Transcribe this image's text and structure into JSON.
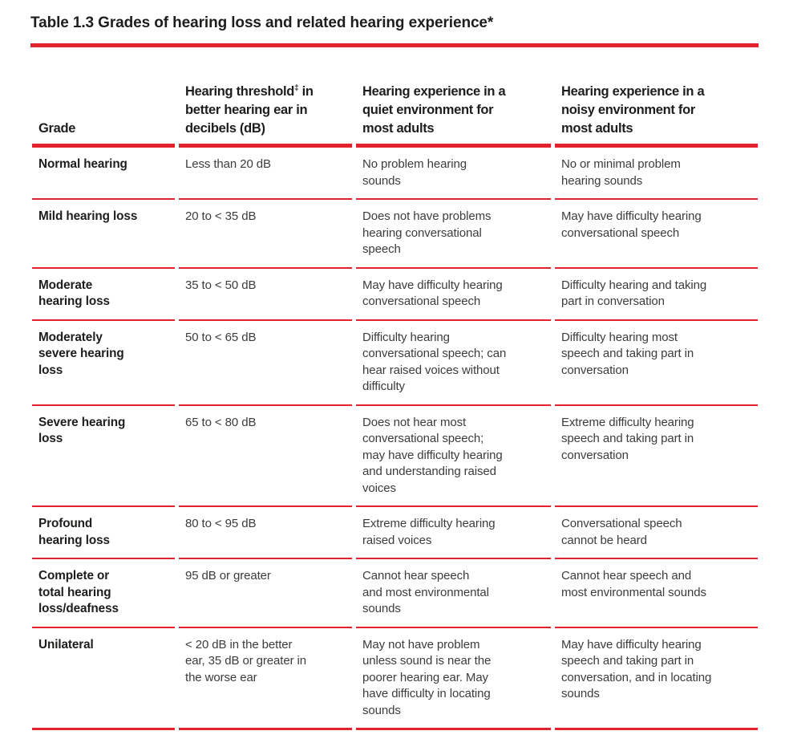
{
  "title": "Table 1.3 Grades of hearing loss and related hearing experience*",
  "colors": {
    "accent_red": "#e2232e",
    "title_text": "#1d1d1b",
    "body_text": "#3c3c3e"
  },
  "table": {
    "headers": {
      "grade": "Grade",
      "threshold_pre": "Hearing threshold",
      "threshold_sup": "‡",
      "threshold_post": " in\nbetter hearing ear in\ndecibels (dB)",
      "quiet": "Hearing experience in a\nquiet environment for\nmost adults",
      "noisy": "Hearing experience in a\nnoisy environment for\nmost adults"
    },
    "rows": [
      {
        "grade": "Normal hearing",
        "threshold": "Less than 20 dB",
        "quiet": "No problem hearing\nsounds",
        "noisy": "No or minimal problem\nhearing sounds"
      },
      {
        "grade": "Mild hearing loss",
        "threshold": "20 to < 35 dB",
        "quiet": "Does not have problems\nhearing conversational\nspeech",
        "noisy": "May have difficulty hearing\nconversational speech"
      },
      {
        "grade": "Moderate\nhearing loss",
        "threshold": "35 to < 50 dB",
        "quiet": "May have difficulty hearing\nconversational speech",
        "noisy": "Difficulty hearing and taking\npart in conversation"
      },
      {
        "grade": "Moderately\nsevere hearing\nloss",
        "threshold": "50 to < 65 dB",
        "quiet": "Difficulty hearing\nconversational speech; can\nhear raised voices without\ndifficulty",
        "noisy": "Difficulty hearing most\nspeech and taking part in\nconversation"
      },
      {
        "grade": "Severe hearing\nloss",
        "threshold": "65 to < 80 dB",
        "quiet": "Does not hear most\nconversational speech;\nmay have difficulty hearing\nand understanding raised\nvoices",
        "noisy": "Extreme difficulty hearing\nspeech and taking part in\nconversation"
      },
      {
        "grade": "Profound\nhearing loss",
        "threshold": "80 to < 95 dB",
        "quiet": "Extreme difficulty hearing\nraised voices",
        "noisy": "Conversational speech\ncannot be heard"
      },
      {
        "grade": "Complete or\ntotal hearing\nloss/deafness",
        "threshold": "95 dB or greater",
        "quiet": "Cannot hear speech\nand most environmental\nsounds",
        "noisy": "Cannot hear speech and\nmost environmental sounds"
      },
      {
        "grade": "Unilateral",
        "threshold": "< 20 dB in the better\near, 35 dB or greater in\nthe worse ear",
        "quiet": "May not have problem\nunless sound is near the\npoorer hearing ear. May\nhave difficulty in locating\nsounds",
        "noisy": "May have difficulty hearing\nspeech and taking part in\nconversation, and in locating\nsounds"
      }
    ]
  }
}
